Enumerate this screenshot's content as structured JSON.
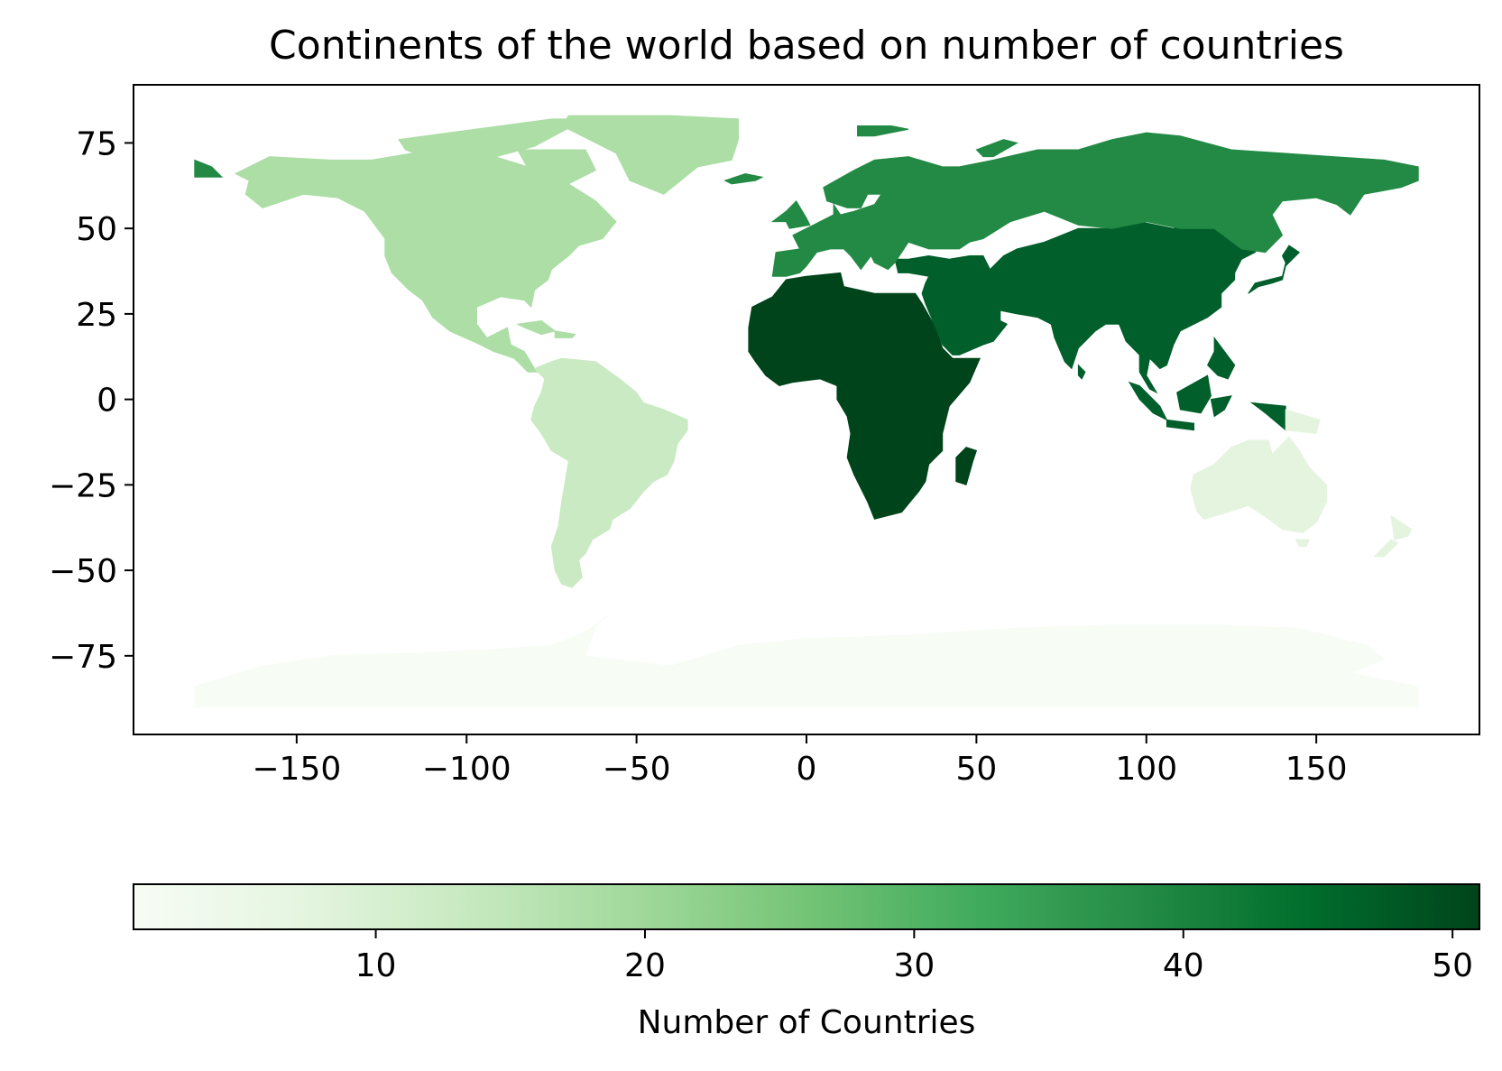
{
  "chart_data": {
    "type": "choropleth",
    "title": "Continents of the world based on number of countries",
    "x_ticks": [
      -150,
      -100,
      -50,
      0,
      50,
      100,
      150
    ],
    "y_ticks": [
      75,
      50,
      25,
      0,
      -25,
      -50,
      -75
    ],
    "x_tick_labels": [
      "−150",
      "−100",
      "−50",
      "0",
      "50",
      "100",
      "150"
    ],
    "y_tick_labels": [
      "75",
      "50",
      "25",
      "0",
      "−25",
      "−50",
      "−75"
    ],
    "xlim": [
      -198,
      198
    ],
    "ylim": [
      -98,
      92
    ],
    "colorbar": {
      "label": "Number of Countries",
      "range": [
        1,
        51
      ],
      "colormap": "Greens",
      "ticks": [
        10,
        20,
        30,
        40,
        50
      ],
      "tick_labels": [
        "10",
        "20",
        "30",
        "40",
        "50"
      ],
      "stops": [
        "#f7fcf5",
        "#e5f5e0",
        "#c7e9c0",
        "#a1d99b",
        "#74c476",
        "#41ab5d",
        "#238b45",
        "#006d2c",
        "#00441b"
      ]
    },
    "regions": [
      {
        "name": "Africa",
        "value": 51,
        "color": "#00441b"
      },
      {
        "name": "Asia",
        "value": 44,
        "color": "#005f2b"
      },
      {
        "name": "Europe",
        "value": 39,
        "color": "#228a44"
      },
      {
        "name": "North America",
        "value": 18,
        "color": "#acdea6"
      },
      {
        "name": "South America",
        "value": 13,
        "color": "#c9eac2"
      },
      {
        "name": "Oceania",
        "value": 7,
        "color": "#e4f4df"
      },
      {
        "name": "Antarctica",
        "value": 1,
        "color": "#f7fcf5"
      }
    ]
  }
}
